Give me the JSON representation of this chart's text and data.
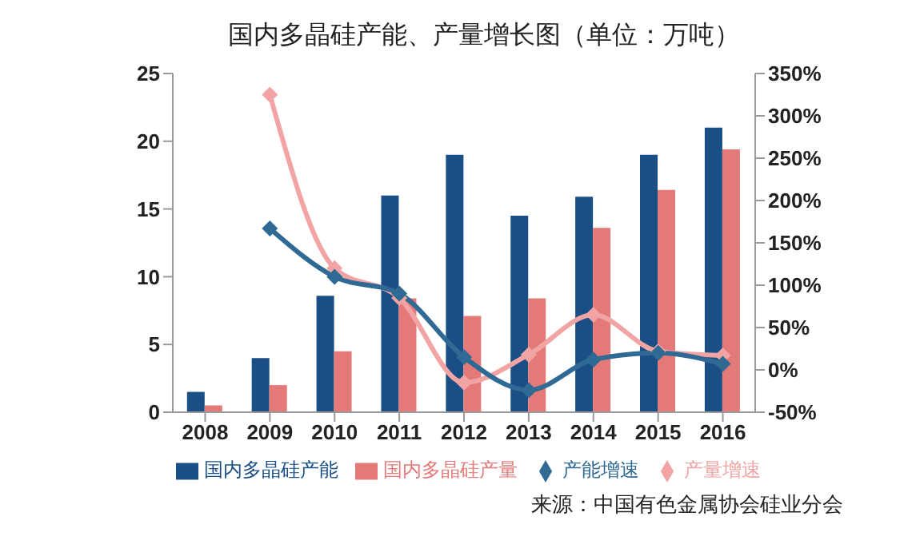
{
  "chart_data": {
    "type": "bar",
    "title": "国内多晶硅产能、产量增长图（单位：万吨）",
    "categories": [
      "2008",
      "2009",
      "2010",
      "2011",
      "2012",
      "2013",
      "2014",
      "2015",
      "2016"
    ],
    "series": [
      {
        "name": "国内多晶硅产能",
        "color": "#1a4f86",
        "values": [
          1.5,
          4,
          8.6,
          16,
          19,
          14.5,
          15.9,
          19,
          21
        ]
      },
      {
        "name": "国内多晶硅产量",
        "color": "#e47a78",
        "values": [
          0.5,
          2,
          4.5,
          8.4,
          7.1,
          8.4,
          13.6,
          16.4,
          19.4
        ]
      },
      {
        "name": "产能增速",
        "type": "line",
        "axis": "y2",
        "color": "#2e6a94",
        "marker": "diamond",
        "values": [
          null,
          167,
          110,
          90,
          15,
          -24,
          12,
          20,
          7
        ]
      },
      {
        "name": "产量增速",
        "type": "line",
        "axis": "y2",
        "color": "#f2a3a3",
        "marker": "diamond",
        "values": [
          null,
          325,
          120,
          85,
          -15,
          18,
          65,
          22,
          17
        ]
      }
    ],
    "ylim": [
      0,
      25
    ],
    "yticks": [
      0,
      5,
      10,
      15,
      20,
      25
    ],
    "y2lim": [
      -50,
      350
    ],
    "y2ticks": [
      {
        "value": -50,
        "label": "-50%"
      },
      {
        "value": 0,
        "label": "0%"
      },
      {
        "value": 50,
        "label": "50%"
      },
      {
        "value": 100,
        "label": "100%"
      },
      {
        "value": 150,
        "label": "150%"
      },
      {
        "value": 200,
        "label": "200%"
      },
      {
        "value": 250,
        "label": "250%"
      },
      {
        "value": 300,
        "label": "300%"
      },
      {
        "value": 350,
        "label": "350%"
      }
    ],
    "grid": false,
    "legend": "bottom",
    "annotations": [
      "来源：中国有色金属协会硅业分会"
    ]
  }
}
